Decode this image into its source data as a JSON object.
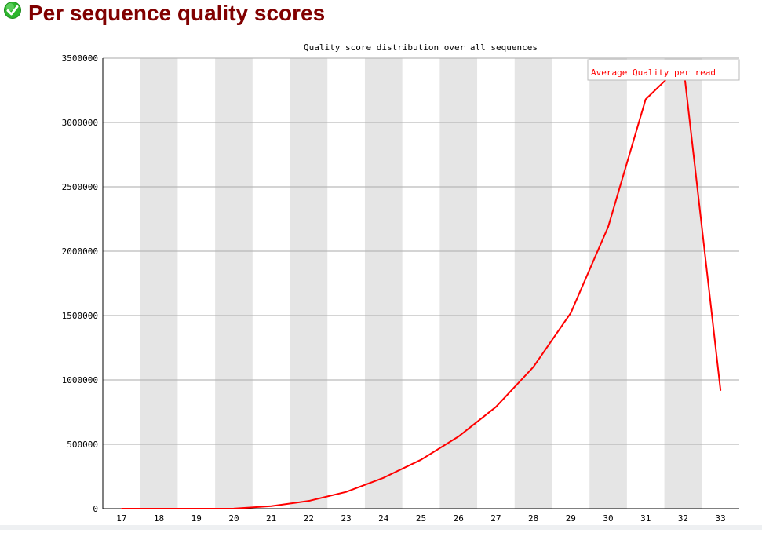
{
  "page": {
    "title": "Per sequence quality scores",
    "status": "pass",
    "status_icon": "check-circle-icon"
  },
  "colors": {
    "title": "#800000",
    "line": "#ff0000",
    "band": "#e5e5e5",
    "grid": "#aaaaaa",
    "icon": "#2db52d"
  },
  "chart_data": {
    "type": "line",
    "title": "Quality score distribution over all sequences",
    "xlabel": "",
    "ylabel": "",
    "x": [
      17,
      18,
      19,
      20,
      21,
      22,
      23,
      24,
      25,
      26,
      27,
      28,
      29,
      30,
      31,
      32,
      33
    ],
    "x_tick_labels": [
      "17",
      "18",
      "19",
      "20",
      "21",
      "22",
      "23",
      "24",
      "25",
      "26",
      "27",
      "28",
      "29",
      "30",
      "31",
      "32",
      "33"
    ],
    "y_tick_labels": [
      "0",
      "500000",
      "1000000",
      "1500000",
      "2000000",
      "2500000",
      "3000000",
      "3500000"
    ],
    "y_ticks": [
      0,
      500000,
      1000000,
      1500000,
      2000000,
      2500000,
      3000000,
      3500000
    ],
    "ylim": [
      0,
      3500000
    ],
    "series": [
      {
        "name": "Average Quality per read",
        "values": [
          0,
          0,
          0,
          1000,
          20000,
          60000,
          130000,
          240000,
          380000,
          560000,
          790000,
          1100000,
          1520000,
          2190000,
          3180000,
          3460000,
          920000
        ]
      }
    ],
    "grid": true,
    "alternating_bands": true,
    "legend_position": "top-right"
  }
}
